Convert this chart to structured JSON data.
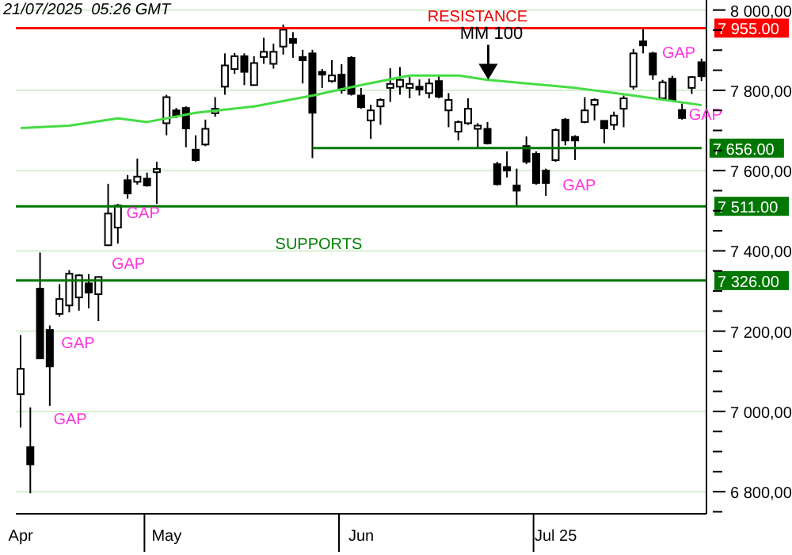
{
  "chart_data": {
    "type": "candlestick",
    "categories": [
      "Apr",
      null,
      null,
      null,
      null,
      null,
      null,
      null,
      null,
      null,
      null,
      null,
      null,
      null,
      null,
      "May",
      null,
      null,
      null,
      null,
      null,
      null,
      null,
      null,
      null,
      null,
      null,
      null,
      null,
      null,
      null,
      null,
      null,
      null,
      null,
      "Jun",
      null,
      null,
      null,
      null,
      null,
      null,
      null,
      null,
      null,
      null,
      null,
      null,
      null,
      null,
      null,
      null,
      null,
      null,
      null,
      "Jul 25",
      null,
      null,
      null,
      null,
      null,
      null,
      null,
      null,
      null,
      null,
      null,
      null,
      null,
      null,
      null
    ],
    "ohlc": [
      [
        7043,
        7190,
        6960,
        7106
      ],
      [
        6911,
        7010,
        6796,
        6868
      ],
      [
        7306,
        7396,
        7132,
        7132
      ],
      [
        7203,
        7214,
        7014,
        7112
      ],
      [
        7243,
        7317,
        7236,
        7280
      ],
      [
        7264,
        7352,
        7247,
        7343
      ],
      [
        7284,
        7342,
        7251,
        7339
      ],
      [
        7319,
        7342,
        7257,
        7296
      ],
      [
        7292,
        7336,
        7225,
        7335
      ],
      [
        7414,
        7567,
        7414,
        7493
      ],
      [
        7458,
        7517,
        7418,
        7513
      ],
      [
        7576,
        7589,
        7530,
        7543
      ],
      [
        7572,
        7630,
        7565,
        7585
      ],
      [
        7580,
        7595,
        7560,
        7563
      ],
      [
        7596,
        7622,
        7517,
        7604
      ],
      [
        7718,
        7789,
        7688,
        7783
      ],
      [
        7750,
        7756,
        7731,
        7737
      ],
      [
        7756,
        7760,
        7658,
        7705
      ],
      [
        7652,
        7688,
        7622,
        7626
      ],
      [
        7665,
        7727,
        7661,
        7704
      ],
      [
        7743,
        7783,
        7734,
        7754
      ],
      [
        7809,
        7892,
        7789,
        7862
      ],
      [
        7853,
        7893,
        7841,
        7885
      ],
      [
        7885,
        7892,
        7813,
        7846
      ],
      [
        7813,
        7885,
        7813,
        7868
      ],
      [
        7883,
        7931,
        7866,
        7896
      ],
      [
        7866,
        7916,
        7854,
        7896
      ],
      [
        7909,
        7964,
        7889,
        7951
      ],
      [
        7928,
        7945,
        7881,
        7918
      ],
      [
        7883,
        7901,
        7817,
        7875
      ],
      [
        7892,
        7901,
        7631,
        7744
      ],
      [
        7846,
        7853,
        7806,
        7839
      ],
      [
        7823,
        7875,
        7819,
        7837
      ],
      [
        7839,
        7865,
        7792,
        7800
      ],
      [
        7881,
        7885,
        7787,
        7791
      ],
      [
        7787,
        7806,
        7754,
        7758
      ],
      [
        7725,
        7764,
        7679,
        7750
      ],
      [
        7760,
        7780,
        7714,
        7776
      ],
      [
        7806,
        7855,
        7771,
        7816
      ],
      [
        7809,
        7858,
        7789,
        7826
      ],
      [
        7806,
        7833,
        7780,
        7816
      ],
      [
        7809,
        7827,
        7787,
        7802
      ],
      [
        7793,
        7829,
        7780,
        7817
      ],
      [
        7823,
        7837,
        7780,
        7784
      ],
      [
        7750,
        7793,
        7708,
        7776
      ],
      [
        7697,
        7725,
        7675,
        7721
      ],
      [
        7718,
        7780,
        7714,
        7754
      ],
      [
        7704,
        7718,
        7655,
        7712
      ],
      [
        7704,
        7721,
        7665,
        7668
      ],
      [
        7616,
        7622,
        7563,
        7566
      ],
      [
        7609,
        7648,
        7583,
        7600
      ],
      [
        7563,
        7605,
        7513,
        7550
      ],
      [
        7661,
        7685,
        7616,
        7622
      ],
      [
        7642,
        7648,
        7565,
        7569
      ],
      [
        7600,
        7605,
        7537,
        7569
      ],
      [
        7626,
        7705,
        7622,
        7701
      ],
      [
        7727,
        7731,
        7663,
        7675
      ],
      [
        7684,
        7688,
        7626,
        7675
      ],
      [
        7721,
        7783,
        7718,
        7750
      ],
      [
        7764,
        7780,
        7725,
        7776
      ],
      [
        7724,
        7724,
        7668,
        7705
      ],
      [
        7714,
        7747,
        7701,
        7737
      ],
      [
        7754,
        7787,
        7708,
        7780
      ],
      [
        7809,
        7903,
        7802,
        7892
      ],
      [
        7922,
        7954,
        7892,
        7912
      ],
      [
        7892,
        7896,
        7826,
        7839
      ],
      [
        7780,
        7826,
        7774,
        7820
      ],
      [
        7829,
        7836,
        7774,
        7776
      ],
      [
        7751,
        7767,
        7727,
        7731
      ],
      [
        7806,
        7835,
        7791,
        7833
      ],
      [
        7870,
        7879,
        7823,
        7835
      ]
    ],
    "series": [
      {
        "name": "MM 100",
        "type": "line",
        "color": "#44dd44",
        "values": [
          7706,
          null,
          null,
          null,
          null,
          7712,
          null,
          null,
          null,
          null,
          7730,
          null,
          null,
          7721,
          null,
          null,
          null,
          null,
          7744,
          null,
          null,
          null,
          null,
          null,
          7760,
          null,
          null,
          null,
          null,
          null,
          7787,
          null,
          null,
          null,
          null,
          7813,
          null,
          null,
          null,
          null,
          7837,
          null,
          null,
          null,
          null,
          7837,
          null,
          null,
          7826,
          null,
          null,
          null,
          null,
          null,
          null,
          null,
          null,
          7806,
          null,
          null,
          null,
          null,
          null,
          7787,
          null,
          null,
          null,
          null,
          null,
          null,
          7763
        ]
      }
    ],
    "ylim": [
      6745,
      8025
    ],
    "yticks": [
      {
        "value": 6750,
        "label": null
      },
      {
        "value": 6800,
        "label": "6 800,00"
      },
      {
        "value": 6850,
        "label": null
      },
      {
        "value": 6900,
        "label": null
      },
      {
        "value": 6950,
        "label": null
      },
      {
        "value": 7000,
        "label": "7 000,00"
      },
      {
        "value": 7050,
        "label": null
      },
      {
        "value": 7100,
        "label": null
      },
      {
        "value": 7150,
        "label": null
      },
      {
        "value": 7200,
        "label": "7 200,00"
      },
      {
        "value": 7250,
        "label": null
      },
      {
        "value": 7300,
        "label": null
      },
      {
        "value": 7350,
        "label": null
      },
      {
        "value": 7400,
        "label": "7 400,00"
      },
      {
        "value": 7450,
        "label": null
      },
      {
        "value": 7500,
        "label": null
      },
      {
        "value": 7550,
        "label": null
      },
      {
        "value": 7600,
        "label": "7 600,00"
      },
      {
        "value": 7650,
        "label": null
      },
      {
        "value": 7700,
        "label": null
      },
      {
        "value": 7750,
        "label": null
      },
      {
        "value": 7800,
        "label": "7 800,00"
      },
      {
        "value": 7850,
        "label": null
      },
      {
        "value": 7900,
        "label": null
      },
      {
        "value": 7950,
        "label": null
      },
      {
        "value": 8000,
        "label": "8 000,00"
      }
    ],
    "grid": "y",
    "ref_lines": [
      {
        "axis": "y",
        "value": 7955,
        "label": "7 955.00",
        "color": "#ff0000"
      },
      {
        "axis": "y",
        "value": 7656,
        "label": "7 656.00",
        "color": "#007700"
      },
      {
        "axis": "y",
        "value": 7511,
        "label": "7 511.00",
        "color": "#007700"
      },
      {
        "axis": "y",
        "value": 7326,
        "label": "7 326.00",
        "color": "#007700"
      }
    ],
    "annotations": [
      "21/07/2025  05:26 GMT",
      "RESISTANCE",
      "SUPPORTS",
      "GAP",
      "GAP",
      "GAP",
      "GAP",
      "GAP",
      "GAP",
      "GAP"
    ]
  }
}
